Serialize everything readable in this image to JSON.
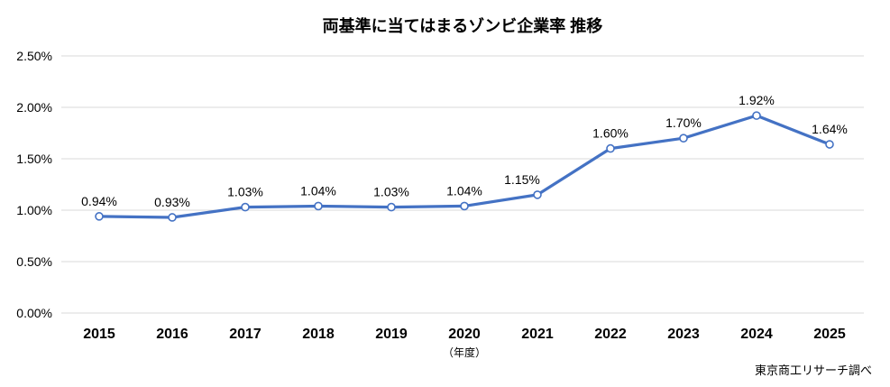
{
  "chart_data": {
    "type": "line",
    "title": "両基準に当てはまるゾンビ企業率 推移",
    "categories": [
      "2015",
      "2016",
      "2017",
      "2018",
      "2019",
      "2020",
      "2021",
      "2022",
      "2023",
      "2024",
      "2025"
    ],
    "values": [
      0.94,
      0.93,
      1.03,
      1.04,
      1.03,
      1.04,
      1.15,
      1.6,
      1.7,
      1.92,
      1.64
    ],
    "point_labels": [
      "0.94%",
      "0.93%",
      "1.03%",
      "1.04%",
      "1.03%",
      "1.04%",
      "1.15%",
      "1.60%",
      "1.70%",
      "1.92%",
      "1.64%"
    ],
    "xlabel": "（年度）",
    "ylabel": "",
    "ylim": [
      0,
      2.5
    ],
    "y_ticks": [
      {
        "value": 2.5,
        "label": "2.50%"
      },
      {
        "value": 2.0,
        "label": "2.00%"
      },
      {
        "value": 1.5,
        "label": "1.50%"
      },
      {
        "value": 1.0,
        "label": "1.00%"
      },
      {
        "value": 0.5,
        "label": "0.50%"
      },
      {
        "value": 0.0,
        "label": "0.00%"
      }
    ],
    "grid": true,
    "legend_position": "none",
    "label_offsets_x": [
      0,
      0,
      0,
      0,
      0,
      0,
      -17,
      0,
      0,
      0,
      0
    ],
    "colors": {
      "line": "#4472C4",
      "marker_fill": "#FFFFFF",
      "marker_stroke": "#4472C4",
      "gridline": "#D9D9D9",
      "text": "#000000"
    }
  },
  "footer": {
    "source": "東京商工リサーチ調べ"
  }
}
